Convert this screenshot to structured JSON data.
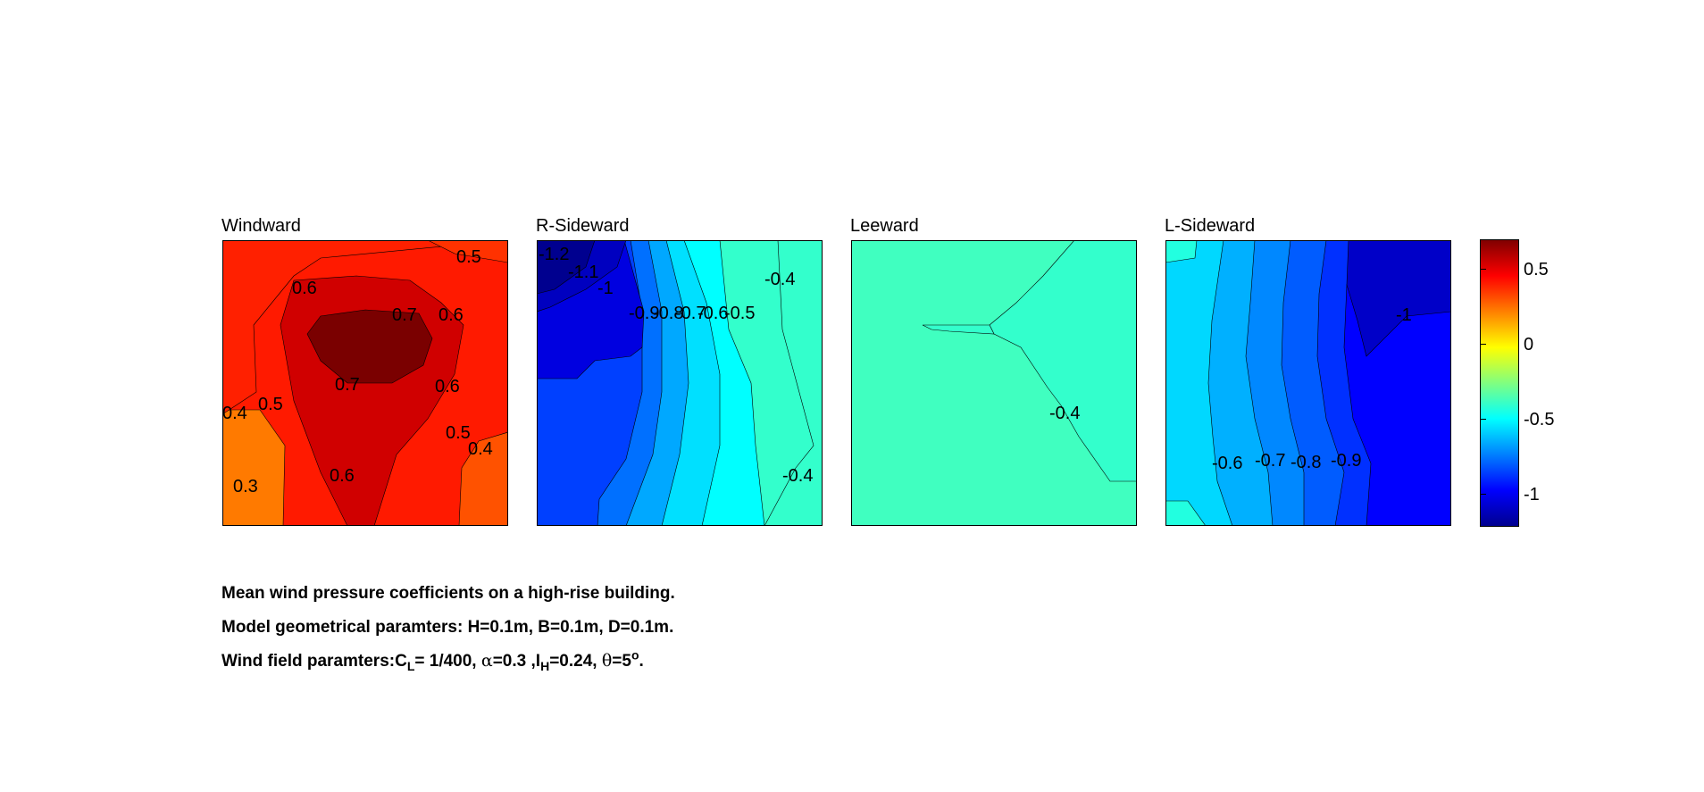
{
  "chart_data": {
    "type": "heatmap",
    "subtype": "filled-contour",
    "colormap": "jet",
    "panels": [
      {
        "title": "Windward",
        "contour_labels": [
          "0.5",
          "0.6",
          "0.7",
          "0.6",
          "0.7",
          "0.6",
          "0.4",
          "0.5",
          "0.5",
          "0.4",
          "0.3",
          "0.6"
        ],
        "value_range": [
          0.3,
          0.75
        ]
      },
      {
        "title": "R-Sideward",
        "contour_labels": [
          "-1.2",
          "-1.1",
          "-1",
          "-0.9",
          "-0.8",
          "-0.7",
          "-0.6",
          "-0.5",
          "-0.4",
          "-0.4"
        ],
        "value_range": [
          -1.2,
          -0.35
        ]
      },
      {
        "title": "Leeward",
        "contour_labels": [
          "-0.4"
        ],
        "value_range": [
          -0.45,
          -0.35
        ]
      },
      {
        "title": "L-Sideward",
        "contour_labels": [
          "-1",
          "-0.6",
          "-0.7",
          "-0.8",
          "-0.9"
        ],
        "value_range": [
          -1.05,
          -0.5
        ]
      }
    ],
    "colorbar": {
      "range": [
        -1.2,
        0.7
      ],
      "tick_values": [
        0.5,
        0,
        -0.5,
        -1
      ],
      "tick_labels": [
        "0.5",
        "0",
        "-0.5",
        "-1"
      ]
    }
  },
  "caption": {
    "line1": "Mean wind pressure coefficients on a high-rise building.",
    "line2": "Model geometrical paramters: H=0.1m, B=0.1m, D=0.1m.",
    "line3_prefix": "Wind field paramters:C",
    "line3_cl_sub": "L",
    "line3_mid1": "= 1/400, ",
    "line3_alpha": "α",
    "line3_mid2": "=0.3 ,I",
    "line3_ih_sub": "H",
    "line3_mid3": "=0.24, ",
    "line3_theta": "θ",
    "line3_mid4": "=5",
    "line3_sup": "o",
    "line3_end": "."
  }
}
